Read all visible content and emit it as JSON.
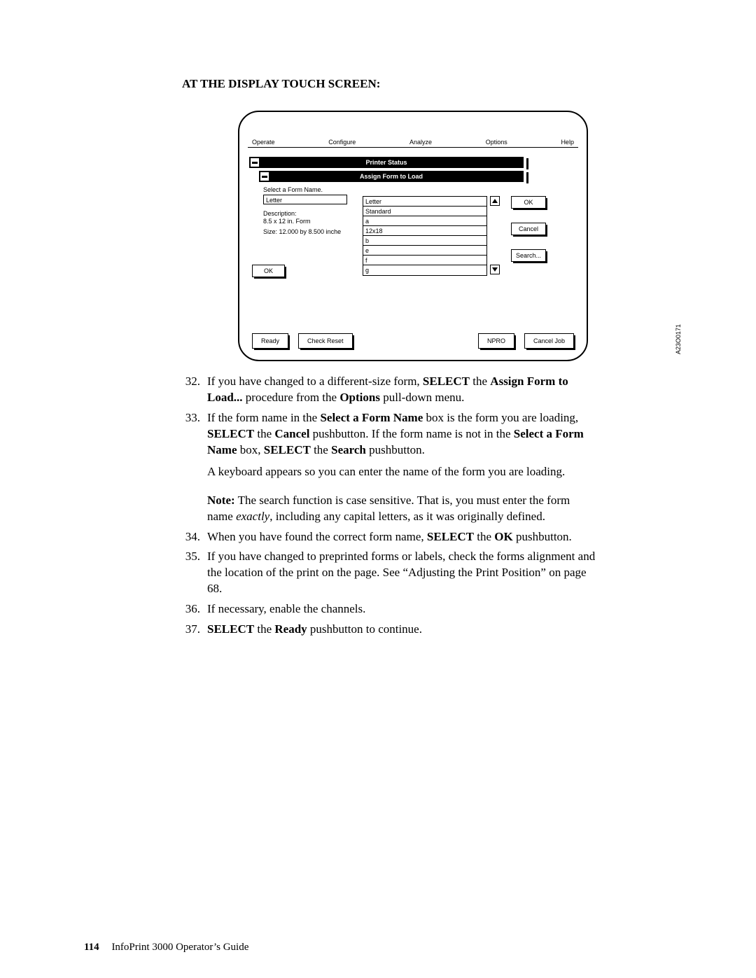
{
  "section_title": "AT THE DISPLAY TOUCH SCREEN:",
  "menu": {
    "operate": "Operate",
    "configure": "Configure",
    "analyze": "Analyze",
    "options": "Options",
    "help": "Help"
  },
  "titlebar1": "Printer Status",
  "titlebar2": "Assign Form to Load",
  "form": {
    "select_label": "Select a Form Name.",
    "value": "Letter",
    "desc_label": "Description:",
    "desc_value": "8.5 x 12 in. Form",
    "size": "Size: 12.000 by 8.500 inche",
    "ok": "OK"
  },
  "list": [
    "Letter",
    "Standard",
    "a",
    "12x18",
    "b",
    "e",
    "f",
    "g"
  ],
  "side_buttons": {
    "ok": "OK",
    "cancel": "Cancel",
    "search": "Search..."
  },
  "bottom": {
    "ready": "Ready",
    "check": "Check Reset",
    "npro": "NPRO",
    "cancel": "Cancel Job"
  },
  "fig_code": "A23O0171",
  "steps": {
    "n32": "32.",
    "t32a": "If you have changed to a different-size form, ",
    "t32b": "SELECT",
    "t32c": " the ",
    "t32d": "Assign Form to Load...",
    "t32e": " procedure from the ",
    "t32f": "Options",
    "t32g": " pull-down menu.",
    "n33": "33.",
    "t33a": "If the form name in the ",
    "t33b": "Select a Form Name",
    "t33c": " box is the form you are loading, ",
    "t33d": "SELECT",
    "t33e": " the ",
    "t33f": "Cancel",
    "t33g": " pushbutton. If the form name is not in the ",
    "t33h": "Select a Form Name",
    "t33i": " box, ",
    "t33j": "SELECT",
    "t33k": " the ",
    "t33l": "Search",
    "t33m": " pushbutton.",
    "t33sub": "A keyboard appears so you can enter the name of the form you are loading.",
    "note_lead": "Note:",
    "note_a": " The search function is case sensitive. That is, you must enter the form name ",
    "note_b": "exactly",
    "note_c": ", including any capital letters, as it was originally defined.",
    "n34": "34.",
    "t34a": "When you have found the correct form name, ",
    "t34b": "SELECT",
    "t34c": " the ",
    "t34d": "OK",
    "t34e": " pushbutton.",
    "n35": "35.",
    "t35": "If you have changed to preprinted forms or labels, check the forms alignment and the location of the print on the page. See “Adjusting the Print Position” on page 68.",
    "n36": "36.",
    "t36": "If necessary, enable the channels.",
    "n37": "37.",
    "t37a": "SELECT",
    "t37b": " the ",
    "t37c": "Ready",
    "t37d": " pushbutton to continue."
  },
  "footer": {
    "page": "114",
    "title": "InfoPrint 3000 Operator’s Guide"
  }
}
